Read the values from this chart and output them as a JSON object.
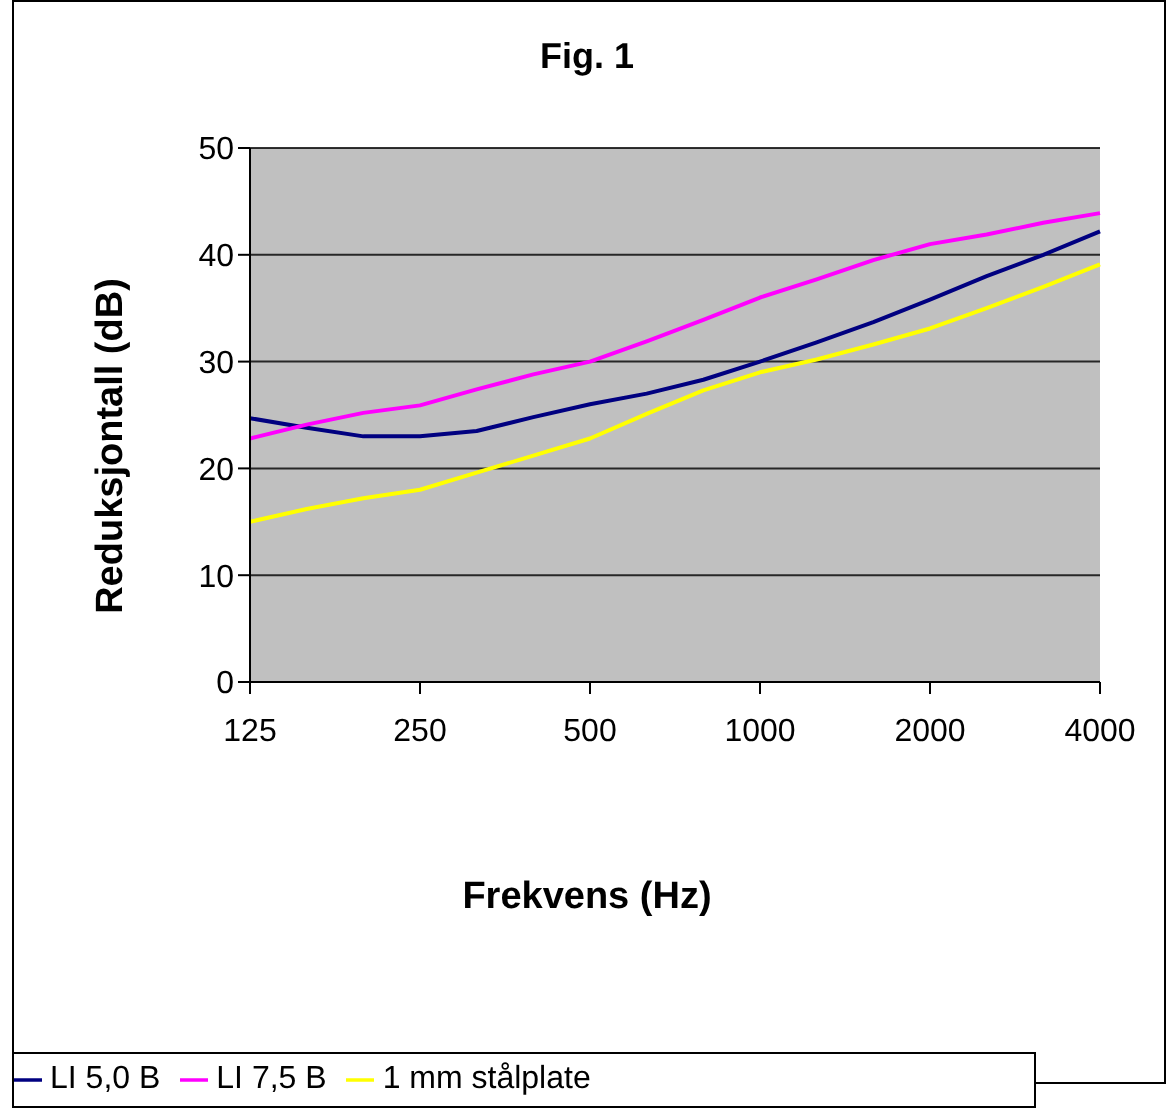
{
  "chart_data": {
    "type": "line",
    "title": "Fig. 1",
    "xlabel": "Frekvens (Hz)",
    "ylabel": "Reduksjontall (dB)",
    "categories": [
      "125",
      null,
      null,
      "250",
      null,
      null,
      "500",
      null,
      null,
      "1000",
      null,
      null,
      "2000",
      null,
      null,
      "4000"
    ],
    "series": [
      {
        "name": "LI 5,0 B",
        "color": "#000080",
        "values": [
          24.7,
          23.8,
          23.0,
          23.0,
          23.5,
          24.8,
          26,
          27,
          28.3,
          30,
          31.8,
          33.7,
          35.8,
          38,
          40,
          42.2
        ]
      },
      {
        "name": "LI 7,5 B",
        "color": "#ff00ff",
        "values": [
          22.8,
          24.1,
          25.2,
          25.9,
          27.4,
          28.8,
          30,
          31.9,
          33.9,
          36,
          37.7,
          39.5,
          41,
          41.9,
          43,
          43.9
        ]
      },
      {
        "name": "1 mm stålplate",
        "color": "#ffff00",
        "values": [
          15,
          16.2,
          17.2,
          18,
          19.6,
          21.2,
          22.8,
          25.1,
          27.3,
          29,
          30.2,
          31.6,
          33.1,
          35,
          37,
          39.1
        ]
      }
    ],
    "ylim": [
      0,
      50
    ],
    "yticks": [
      0,
      10,
      20,
      30,
      40,
      50
    ],
    "grid": "y",
    "legend": "bottom",
    "marker": "none",
    "line_style": "solid"
  }
}
